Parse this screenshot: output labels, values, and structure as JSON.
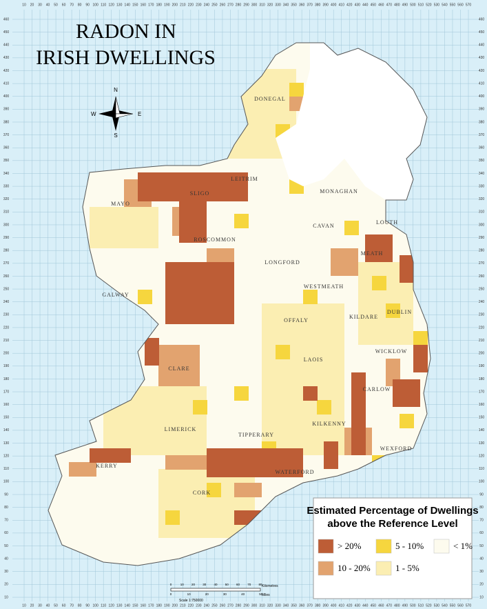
{
  "title": [
    "RADON IN",
    "IRISH DWELLINGS"
  ],
  "compass": {
    "n": "N",
    "s": "S",
    "e": "E",
    "w": "W"
  },
  "counties": [
    "DONEGAL",
    "LEITRIM",
    "SLIGO",
    "MAYO",
    "ROSCOMMON",
    "MONAGHAN",
    "CAVAN",
    "LOUTH",
    "MEATH",
    "LONGFORD",
    "WESTMEATH",
    "GALWAY",
    "OFFALY",
    "KILDARE",
    "DUBLIN",
    "LAOIS",
    "WICKLOW",
    "CLARE",
    "CARLOW",
    "TIPPERARY",
    "KILKENNY",
    "LIMERICK",
    "WEXFORD",
    "KERRY",
    "WATERFORD",
    "CORK"
  ],
  "legend": {
    "title": [
      "Estimated Percentage of Dwellings",
      "above the Reference Level"
    ],
    "items": [
      {
        "label": "> 20%",
        "color": "#bd5d36"
      },
      {
        "label": "5 - 10%",
        "color": "#f6d63e"
      },
      {
        "label": "< 1%",
        "color": "#fdfbee"
      },
      {
        "label": "10 - 20%",
        "color": "#e2a36f"
      },
      {
        "label": "1 - 5%",
        "color": "#fbeeb2"
      }
    ]
  },
  "scale": {
    "ratio": "Scale 1:750000",
    "units": [
      "Kilometres",
      "Miles"
    ],
    "km": [
      0,
      10,
      20,
      30,
      40,
      50,
      60,
      70,
      80
    ],
    "miles": [
      0,
      10,
      20,
      30,
      40,
      50
    ]
  },
  "grid": {
    "x_ticks": [
      10,
      20,
      30,
      40,
      50,
      60,
      70,
      80,
      90,
      100,
      110,
      120,
      130,
      140,
      150,
      160,
      170,
      180,
      190,
      200,
      210,
      220,
      230,
      240,
      250,
      260,
      270,
      280,
      290,
      300,
      310,
      320,
      330,
      340,
      350,
      360,
      370,
      380,
      390,
      400,
      410,
      420,
      430,
      440,
      450,
      460,
      470,
      480,
      490,
      500,
      510,
      520,
      530,
      540,
      550,
      560,
      570
    ],
    "y_ticks": [
      10,
      20,
      30,
      40,
      50,
      60,
      70,
      80,
      90,
      100,
      110,
      120,
      130,
      140,
      150,
      160,
      170,
      180,
      190,
      200,
      210,
      220,
      230,
      240,
      250,
      260,
      270,
      280,
      290,
      300,
      310,
      320,
      330,
      340,
      350,
      360,
      370,
      380,
      390,
      400,
      410,
      420,
      430,
      440,
      450,
      460
    ]
  }
}
